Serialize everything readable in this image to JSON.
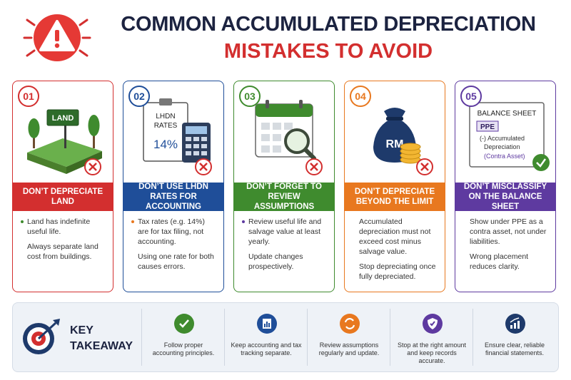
{
  "header": {
    "title_line1": "COMMON ACCUMULATED DEPRECIATION",
    "title_line2": "MISTAKES TO AVOID"
  },
  "cards": [
    {
      "number": "01",
      "heading": "DON’T DEPRECIATE LAND",
      "illustration": {
        "sign": "LAND"
      },
      "points": [
        "Land has indefinite useful life.",
        "Always separate land cost from buildings."
      ]
    },
    {
      "number": "02",
      "heading": "DON’T USE LHDN RATES FOR ACCOUNTING",
      "illustration": {
        "doc_line1": "LHDN",
        "doc_line2": "RATES",
        "rate": "14%"
      },
      "points": [
        "Tax rates (e.g. 14%) are for tax filing, not accounting.",
        "Using one rate for both causes errors."
      ]
    },
    {
      "number": "03",
      "heading": "DON’T FORGET TO REVIEW ASSUMPTIONS",
      "illustration": {},
      "points": [
        "Review useful life and salvage value at least yearly.",
        "Update changes prospectively."
      ]
    },
    {
      "number": "04",
      "heading": "DON’T DEPRECIATE BEYOND THE LIMIT",
      "illustration": {
        "bag": "RM"
      },
      "points": [
        "Accumulated depreciation must not exceed cost minus salvage value.",
        "Stop depreciating once fully depreciated."
      ]
    },
    {
      "number": "05",
      "heading": "DON’T MISCLASSIFY ON THE BALANCE SHEET",
      "illustration": {
        "panel_title": "BALANCE SHEET",
        "box": "PPE",
        "line1": "(-) Accumulated",
        "line2": "Depreciation",
        "line3": "(Contra Asset)"
      },
      "points": [
        "Show under PPE as a contra asset, not under liabilities.",
        "Wrong placement reduces clarity."
      ]
    }
  ],
  "takeaway": {
    "label_line1": "KEY",
    "label_line2": "TAKEAWAY",
    "items": [
      "Follow proper accounting principles.",
      "Keep accounting and tax tracking separate.",
      "Review assumptions regularly and update.",
      "Stop at the right amount and keep records accurate.",
      "Ensure clear, reliable financial statements."
    ]
  }
}
